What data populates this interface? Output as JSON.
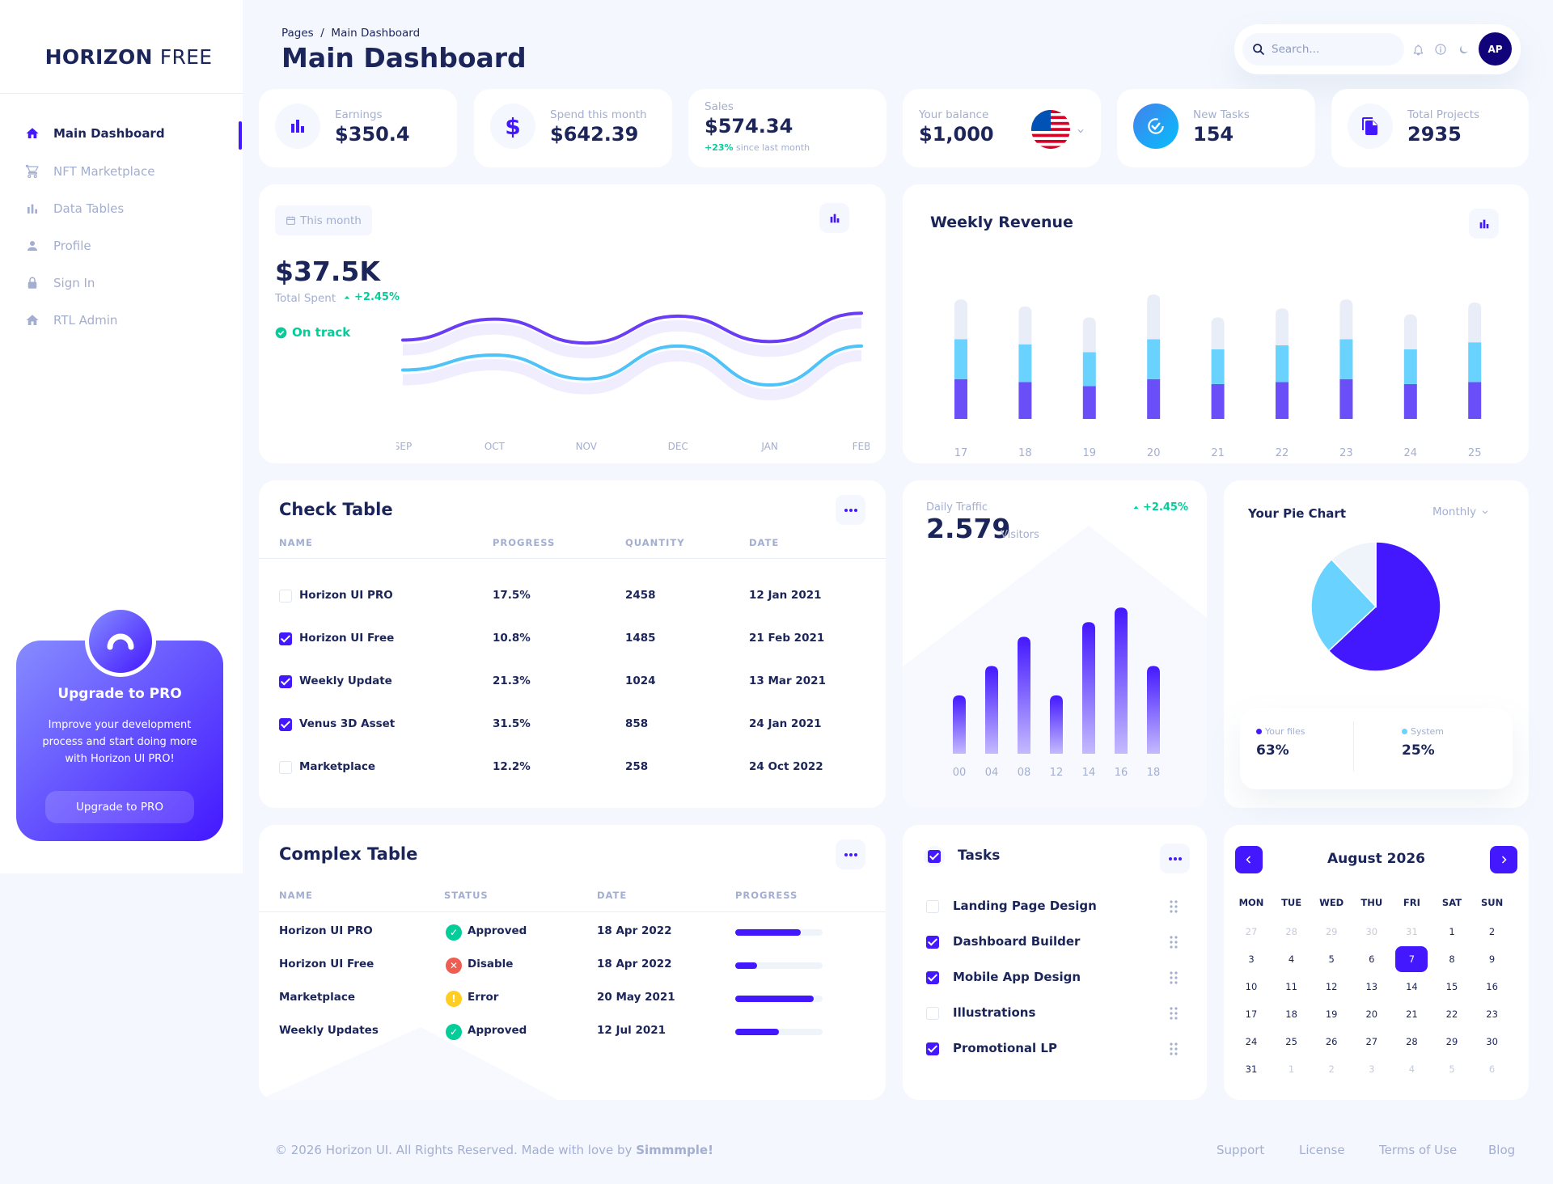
{
  "brand": {
    "bold": "HORIZON",
    "light": "FREE"
  },
  "sidebar": {
    "items": [
      {
        "label": "Main Dashboard",
        "icon": "home-icon"
      },
      {
        "label": "NFT Marketplace",
        "icon": "cart-icon"
      },
      {
        "label": "Data Tables",
        "icon": "bar-chart-icon"
      },
      {
        "label": "Profile",
        "icon": "user-icon"
      },
      {
        "label": "Sign In",
        "icon": "lock-icon"
      },
      {
        "label": "RTL Admin",
        "icon": "home-icon"
      }
    ],
    "upgrade": {
      "title": "Upgrade to PRO",
      "description": "Improve your development process and start doing more with Horizon UI PRO!",
      "button": "Upgrade to PRO"
    }
  },
  "header": {
    "breadcrumb": "Pages  /  Main Dashboard",
    "title": "Main Dashboard",
    "search_placeholder": "Search...",
    "avatar_initials": "AP"
  },
  "stats": {
    "earnings": {
      "label": "Earnings",
      "value": "$350.4"
    },
    "spend": {
      "label": "Spend this month",
      "value": "$642.39"
    },
    "sales": {
      "label": "Sales",
      "value": "$574.34",
      "change": "+23%",
      "change_note": "since last month"
    },
    "balance": {
      "label": "Your balance",
      "value": "$1,000"
    },
    "tasks": {
      "label": "New Tasks",
      "value": "154"
    },
    "projects": {
      "label": "Total Projects",
      "value": "2935"
    }
  },
  "total_spent": {
    "filter": "This month",
    "value": "$37.5K",
    "label": "Total Spent",
    "change": "+2.45%",
    "status": "On track"
  },
  "weekly_revenue": {
    "title": "Weekly Revenue"
  },
  "check_table": {
    "title": "Check Table",
    "columns": [
      "NAME",
      "PROGRESS",
      "QUANTITY",
      "DATE"
    ],
    "rows": [
      {
        "name": "Horizon UI PRO",
        "progress": "17.5%",
        "quantity": "2458",
        "date": "12 Jan 2021",
        "checked": false
      },
      {
        "name": "Horizon UI Free",
        "progress": "10.8%",
        "quantity": "1485",
        "date": "21 Feb 2021",
        "checked": true
      },
      {
        "name": "Weekly Update",
        "progress": "21.3%",
        "quantity": "1024",
        "date": "13 Mar 2021",
        "checked": true
      },
      {
        "name": "Venus 3D Asset",
        "progress": "31.5%",
        "quantity": "858",
        "date": "24 Jan 2021",
        "checked": true
      },
      {
        "name": "Marketplace",
        "progress": "12.2%",
        "quantity": "258",
        "date": "24 Oct 2022",
        "checked": false
      }
    ]
  },
  "daily_traffic": {
    "label": "Daily Traffic",
    "value": "2.579",
    "unit": "Visitors",
    "change": "+2.45%"
  },
  "pie": {
    "title": "Your Pie Chart",
    "filter": "Monthly",
    "legend": [
      {
        "name": "Your files",
        "value": "63%",
        "color": "#4318FF"
      },
      {
        "name": "System",
        "value": "25%",
        "color": "#6AD2FF"
      }
    ]
  },
  "complex_table": {
    "title": "Complex Table",
    "columns": [
      "NAME",
      "STATUS",
      "DATE",
      "PROGRESS"
    ],
    "rows": [
      {
        "name": "Horizon UI PRO",
        "status": "Approved",
        "date": "18 Apr 2022",
        "progress": 0.75
      },
      {
        "name": "Horizon UI Free",
        "status": "Disable",
        "date": "18 Apr 2022",
        "progress": 0.25
      },
      {
        "name": "Marketplace",
        "status": "Error",
        "date": "20 May 2021",
        "progress": 0.9
      },
      {
        "name": "Weekly Updates",
        "status": "Approved",
        "date": "12 Jul 2021",
        "progress": 0.5
      }
    ]
  },
  "tasks": {
    "title": "Tasks",
    "items": [
      {
        "label": "Landing Page Design",
        "checked": false
      },
      {
        "label": "Dashboard Builder",
        "checked": true
      },
      {
        "label": "Mobile App Design",
        "checked": true
      },
      {
        "label": "Illustrations",
        "checked": false
      },
      {
        "label": "Promotional LP",
        "checked": true
      }
    ]
  },
  "calendar": {
    "month": "August 2026",
    "weekdays": [
      "MON",
      "TUE",
      "WED",
      "THU",
      "FRI",
      "SAT",
      "SUN"
    ],
    "days": [
      "27",
      "28",
      "29",
      "30",
      "31",
      "1",
      "2",
      "3",
      "4",
      "5",
      "6",
      "7",
      "8",
      "9",
      "10",
      "11",
      "12",
      "13",
      "14",
      "15",
      "16",
      "17",
      "18",
      "19",
      "20",
      "21",
      "22",
      "23",
      "24",
      "25",
      "26",
      "27",
      "28",
      "29",
      "30",
      "31",
      "1",
      "2",
      "3",
      "4",
      "5",
      "6"
    ],
    "outside_indices": [
      0,
      1,
      2,
      3,
      4,
      36,
      37,
      38,
      39,
      40,
      41
    ],
    "selected_index": 11
  },
  "footer": {
    "copyright_prefix": "© 2026 Horizon UI. All Rights Reserved. Made with love by ",
    "copyright_author": "Simmmple!",
    "links": [
      "Support",
      "License",
      "Terms of Use",
      "Blog"
    ]
  },
  "colors": {
    "brand": "#4318FF",
    "light_blue": "#6AD2FF",
    "navy": "#1B2559",
    "muted": "#A3AED0",
    "success": "#05CD99"
  },
  "chart_data": [
    {
      "type": "line",
      "categories": [
        "SEP",
        "OCT",
        "NOV",
        "DEC",
        "JAN",
        "FEB"
      ],
      "series": [
        {
          "values": [
            50,
            64,
            48,
            66,
            49,
            68
          ]
        },
        {
          "values": [
            30,
            40,
            24,
            46,
            20,
            46
          ]
        }
      ],
      "ylim": [
        0,
        100
      ]
    },
    {
      "type": "bar",
      "stacked": true,
      "categories": [
        "17",
        "18",
        "19",
        "20",
        "21",
        "22",
        "23",
        "24",
        "25"
      ],
      "series": [
        {
          "values": [
            400,
            370,
            330,
            400,
            350,
            370,
            400,
            350,
            370
          ]
        },
        {
          "values": [
            400,
            380,
            340,
            400,
            350,
            370,
            400,
            350,
            400
          ]
        },
        {
          "values": [
            400,
            380,
            350,
            450,
            320,
            370,
            400,
            350,
            400
          ]
        }
      ],
      "colors": [
        "#6A4FF8",
        "#6AD2FF",
        "#E9EDF7"
      ],
      "ylim": [
        0,
        1300
      ]
    },
    {
      "type": "bar",
      "categories": [
        "00",
        "04",
        "08",
        "12",
        "14",
        "16",
        "18"
      ],
      "values": [
        20,
        30,
        40,
        20,
        45,
        50,
        30
      ],
      "ylim": [
        0,
        52
      ]
    },
    {
      "type": "pie",
      "slices": [
        {
          "label": "Your files",
          "value": 63
        },
        {
          "label": "System",
          "value": 25
        },
        {
          "label": "Other",
          "value": 12
        }
      ],
      "colors": [
        "#4318FF",
        "#6AD2FF",
        "#EFF4FB"
      ]
    }
  ]
}
